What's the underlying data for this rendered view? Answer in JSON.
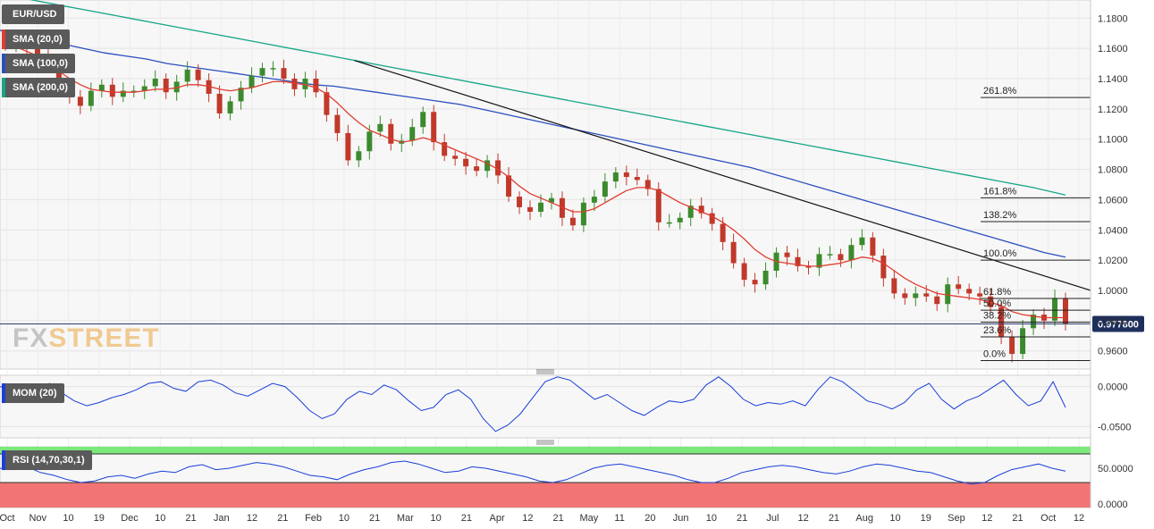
{
  "chart_data": [
    {
      "type": "candlestick",
      "instrument": "EUR/USD",
      "ylim": [
        0.948,
        1.192
      ],
      "y_ticks": [
        "1.1800",
        "1.1600",
        "1.1400",
        "1.1200",
        "1.1000",
        "1.0800",
        "1.0600",
        "1.0400",
        "1.0200",
        "1.0000",
        "0.9800",
        "0.9600"
      ],
      "x_ticks": [
        "Oct",
        "Nov",
        "10",
        "19",
        "Dec",
        "10",
        "21",
        "Jan",
        "12",
        "21",
        "Feb",
        "10",
        "21",
        "Mar",
        "10",
        "21",
        "Apr",
        "12",
        "21",
        "May",
        "11",
        "20",
        "Jun",
        "10",
        "21",
        "Jul",
        "12",
        "21",
        "Aug",
        "10",
        "19",
        "Sep",
        "12",
        "21",
        "Oct",
        "12"
      ],
      "indicators": [
        {
          "name": "SMA (20,0)",
          "color": "#e03c31"
        },
        {
          "name": "SMA (100,0)",
          "color": "#2b4fbf"
        },
        {
          "name": "SMA (200,0)",
          "color": "#17a589"
        }
      ],
      "close_path": [
        1.163,
        1.166,
        1.16,
        1.156,
        1.15,
        1.132,
        1.128,
        1.122,
        1.132,
        1.136,
        1.128,
        1.132,
        1.132,
        1.135,
        1.14,
        1.131,
        1.138,
        1.146,
        1.139,
        1.13,
        1.117,
        1.125,
        1.134,
        1.142,
        1.147,
        1.147,
        1.14,
        1.133,
        1.14,
        1.131,
        1.116,
        1.104,
        1.086,
        1.092,
        1.105,
        1.11,
        1.097,
        1.099,
        1.108,
        1.118,
        1.098,
        1.089,
        1.087,
        1.082,
        1.079,
        1.086,
        1.076,
        1.062,
        1.055,
        1.052,
        1.058,
        1.061,
        1.048,
        1.043,
        1.058,
        1.062,
        1.072,
        1.078,
        1.075,
        1.073,
        1.067,
        1.045,
        1.045,
        1.048,
        1.056,
        1.051,
        1.044,
        1.032,
        1.018,
        1.007,
        1.004,
        1.013,
        1.025,
        1.022,
        1.016,
        1.015,
        1.024,
        1.024,
        1.02,
        1.03,
        1.035,
        1.023,
        1.008,
        0.998,
        0.995,
        0.998,
        0.996,
        0.991,
        1.004,
        1.001,
        0.998,
        0.996,
        0.989,
        0.969,
        0.958,
        0.975,
        0.984,
        0.98,
        0.995,
        0.978
      ],
      "sma20": [
        1.163,
        1.161,
        1.158,
        1.155,
        1.15,
        1.145,
        1.14,
        1.136,
        1.133,
        1.132,
        1.131,
        1.131,
        1.131,
        1.132,
        1.133,
        1.133,
        1.134,
        1.136,
        1.136,
        1.135,
        1.133,
        1.132,
        1.133,
        1.134,
        1.136,
        1.138,
        1.138,
        1.137,
        1.136,
        1.134,
        1.13,
        1.124,
        1.117,
        1.111,
        1.106,
        1.103,
        1.1,
        1.098,
        1.099,
        1.101,
        1.099,
        1.096,
        1.093,
        1.09,
        1.087,
        1.084,
        1.08,
        1.075,
        1.069,
        1.064,
        1.061,
        1.058,
        1.055,
        1.052,
        1.052,
        1.054,
        1.058,
        1.062,
        1.066,
        1.068,
        1.068,
        1.066,
        1.062,
        1.058,
        1.055,
        1.052,
        1.049,
        1.045,
        1.04,
        1.034,
        1.027,
        1.022,
        1.019,
        1.018,
        1.017,
        1.016,
        1.016,
        1.017,
        1.018,
        1.02,
        1.022,
        1.021,
        1.018,
        1.013,
        1.008,
        1.004,
        1.001,
        0.998,
        0.997,
        0.996,
        0.995,
        0.994,
        0.992,
        0.99,
        0.986,
        0.984,
        0.983,
        0.982,
        0.982,
        0.982
      ],
      "sma100": [
        1.172,
        1.169,
        1.166,
        1.163,
        1.16,
        1.157,
        1.155,
        1.153,
        1.15,
        1.148,
        1.146,
        1.144,
        1.142,
        1.14,
        1.138,
        1.136,
        1.135,
        1.133,
        1.131,
        1.129,
        1.127,
        1.125,
        1.123,
        1.12,
        1.117,
        1.114,
        1.111,
        1.108,
        1.105,
        1.102,
        1.099,
        1.096,
        1.093,
        1.09,
        1.087,
        1.084,
        1.081,
        1.077,
        1.073,
        1.069,
        1.065,
        1.061,
        1.057,
        1.053,
        1.049,
        1.045,
        1.041,
        1.037,
        1.033,
        1.029,
        1.025,
        1.022
      ],
      "sma200": [
        1.196,
        1.192,
        1.188,
        1.184,
        1.18,
        1.176,
        1.172,
        1.168,
        1.164,
        1.16,
        1.156,
        1.152,
        1.148,
        1.144,
        1.14,
        1.136,
        1.132,
        1.128,
        1.124,
        1.12,
        1.116,
        1.112,
        1.108,
        1.104,
        1.1,
        1.096,
        1.092,
        1.088,
        1.084,
        1.08,
        1.076,
        1.072,
        1.068,
        1.063
      ],
      "trendline": {
        "from": [
          0.325,
          1.152
        ],
        "to": [
          1.0,
          1.0
        ]
      },
      "fibonacci": [
        {
          "label": "261.8%",
          "value": 1.1275
        },
        {
          "label": "161.8%",
          "value": 1.0612
        },
        {
          "label": "138.2%",
          "value": 1.0455
        },
        {
          "label": "100.0%",
          "value": 1.02
        },
        {
          "label": "61.8%",
          "value": 0.9947
        },
        {
          "label": "50.0%",
          "value": 0.9869
        },
        {
          "label": "38.2%",
          "value": 0.979
        },
        {
          "label": "23.6%",
          "value": 0.9693
        },
        {
          "label": "0.0%",
          "value": 0.9536
        }
      ],
      "current_price": "0.977800",
      "current_value": 0.9778
    },
    {
      "type": "line",
      "indicator": "MOM (20)",
      "ylim": [
        -0.064,
        0.014
      ],
      "y_ticks": [
        "0.0000",
        "-0.0500"
      ],
      "values": [
        0.0,
        -0.004,
        -0.002,
        -0.006,
        0.004,
        -0.008,
        -0.018,
        -0.024,
        -0.02,
        -0.014,
        -0.01,
        -0.004,
        0.004,
        0.006,
        -0.002,
        -0.006,
        0.006,
        0.008,
        0.002,
        -0.008,
        -0.012,
        -0.004,
        0.004,
        0.0,
        -0.014,
        -0.03,
        -0.04,
        -0.034,
        -0.016,
        -0.006,
        -0.01,
        0.002,
        -0.004,
        -0.018,
        -0.03,
        -0.026,
        -0.01,
        -0.004,
        -0.016,
        -0.04,
        -0.056,
        -0.048,
        -0.034,
        -0.014,
        0.006,
        0.012,
        0.008,
        -0.004,
        -0.016,
        -0.01,
        -0.02,
        -0.03,
        -0.036,
        -0.026,
        -0.018,
        -0.02,
        -0.016,
        0.002,
        0.012,
        0.0,
        -0.016,
        -0.024,
        -0.02,
        -0.022,
        -0.018,
        -0.024,
        -0.004,
        0.012,
        0.006,
        -0.006,
        -0.018,
        -0.022,
        -0.028,
        -0.02,
        -0.004,
        0.004,
        -0.016,
        -0.028,
        -0.018,
        -0.012,
        -0.002,
        0.008,
        -0.01,
        -0.024,
        -0.018,
        0.006,
        -0.026
      ]
    },
    {
      "type": "line",
      "indicator": "RSI (14,70,30,1)",
      "ylim": [
        -5,
        80
      ],
      "y_ticks": [
        "50.0000",
        "0.0000"
      ],
      "overbought": 70,
      "oversold": 30,
      "values": [
        50,
        48,
        52,
        44,
        40,
        34,
        30,
        32,
        38,
        40,
        36,
        42,
        46,
        44,
        52,
        55,
        48,
        50,
        54,
        58,
        56,
        52,
        46,
        40,
        38,
        34,
        42,
        48,
        52,
        58,
        60,
        56,
        50,
        44,
        46,
        52,
        50,
        46,
        42,
        38,
        32,
        30,
        34,
        42,
        50,
        54,
        56,
        52,
        48,
        44,
        40,
        34,
        30,
        30,
        36,
        44,
        48,
        52,
        54,
        52,
        48,
        44,
        42,
        46,
        52,
        56,
        54,
        50,
        46,
        44,
        38,
        32,
        28,
        30,
        40,
        48,
        52,
        56,
        50,
        46
      ]
    }
  ],
  "branding": {
    "watermark_fx": "FX",
    "watermark_street": "STREET"
  },
  "colors": {
    "candle_up": "#3c8a2e",
    "candle_down": "#c0392b",
    "sma20": "#e03c31",
    "sma100": "#2b4fbf",
    "sma200": "#17a589",
    "trendline": "#111111",
    "mom_line": "#1a3fd8",
    "rsi_line": "#1a3fd8",
    "rsi_overbought_fill": "#7be87b",
    "rsi_oversold_fill": "#f27474",
    "legend_bg": "#5a5a5a",
    "price_label_bg": "#1e2f5c"
  }
}
